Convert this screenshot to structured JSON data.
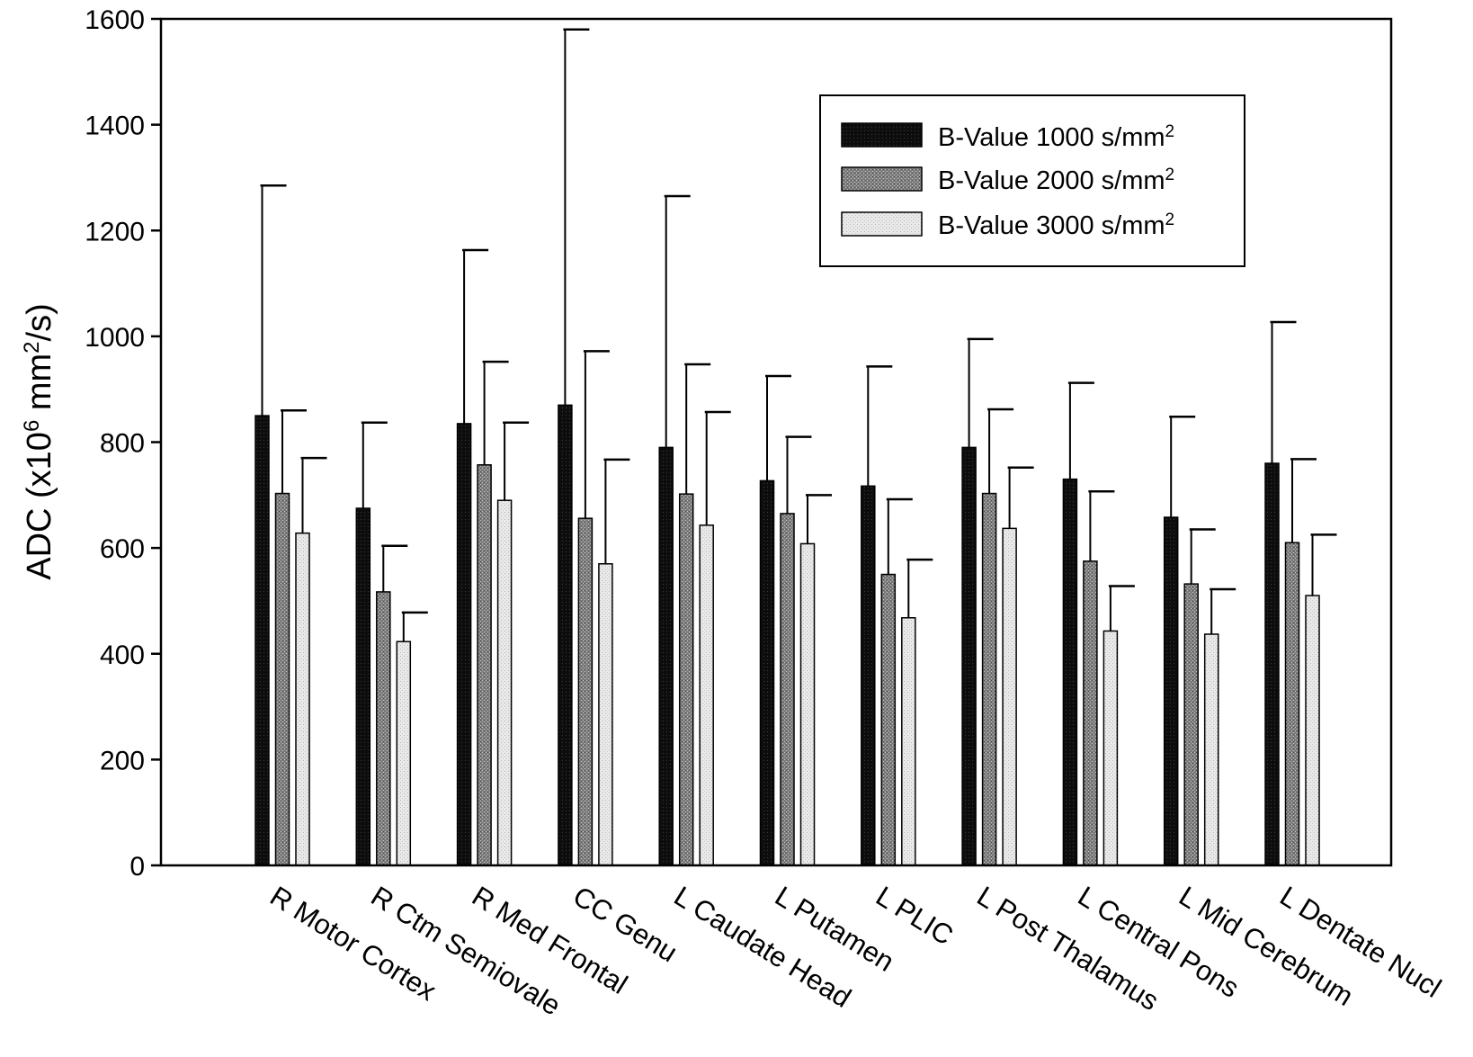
{
  "chart_data": {
    "type": "bar",
    "ylabel": {
      "prefix": "ADC (x10",
      "exp1": "6",
      "middle": " mm",
      "exp2": "2",
      "suffix": "/s)"
    },
    "ylim": [
      0,
      1600
    ],
    "yticks": [
      "0",
      "200",
      "400",
      "600",
      "800",
      "1000",
      "1200",
      "1400",
      "1600"
    ],
    "ytick_values": [
      0,
      200,
      400,
      600,
      800,
      1000,
      1200,
      1400,
      1600
    ],
    "grid": false,
    "legend_position": "top-right",
    "categories": [
      "R Motor Cortex",
      "R Ctm Semiovale",
      "R Med Frontal",
      "CC Genu",
      "L Caudate Head",
      "L Putamen",
      "L PLIC",
      "L Post Thalamus",
      "L Central Pons",
      "L Mid Cerebrum",
      "L Dentate Nucl"
    ],
    "series": [
      {
        "name": "B-Value 1000 s/mm",
        "name_sup": "2",
        "color": "#111111",
        "values": [
          850,
          675,
          835,
          870,
          790,
          727,
          717,
          790,
          730,
          658,
          760
        ],
        "error_upper": [
          1285,
          837,
          1163,
          1580,
          1265,
          925,
          943,
          995,
          912,
          848,
          1027
        ]
      },
      {
        "name": "B-Value 2000 s/mm",
        "name_sup": "2",
        "color": "#8a8a8a",
        "values": [
          703,
          517,
          757,
          656,
          702,
          665,
          550,
          703,
          575,
          532,
          610
        ],
        "error_upper": [
          860,
          604,
          952,
          972,
          947,
          810,
          692,
          862,
          707,
          635,
          768
        ]
      },
      {
        "name": "B-Value 3000 s/mm",
        "name_sup": "2",
        "color": "#dedede",
        "values": [
          628,
          423,
          690,
          570,
          643,
          608,
          468,
          637,
          443,
          437,
          510
        ],
        "error_upper": [
          770,
          478,
          837,
          767,
          857,
          700,
          578,
          752,
          528,
          522,
          625
        ]
      }
    ]
  }
}
